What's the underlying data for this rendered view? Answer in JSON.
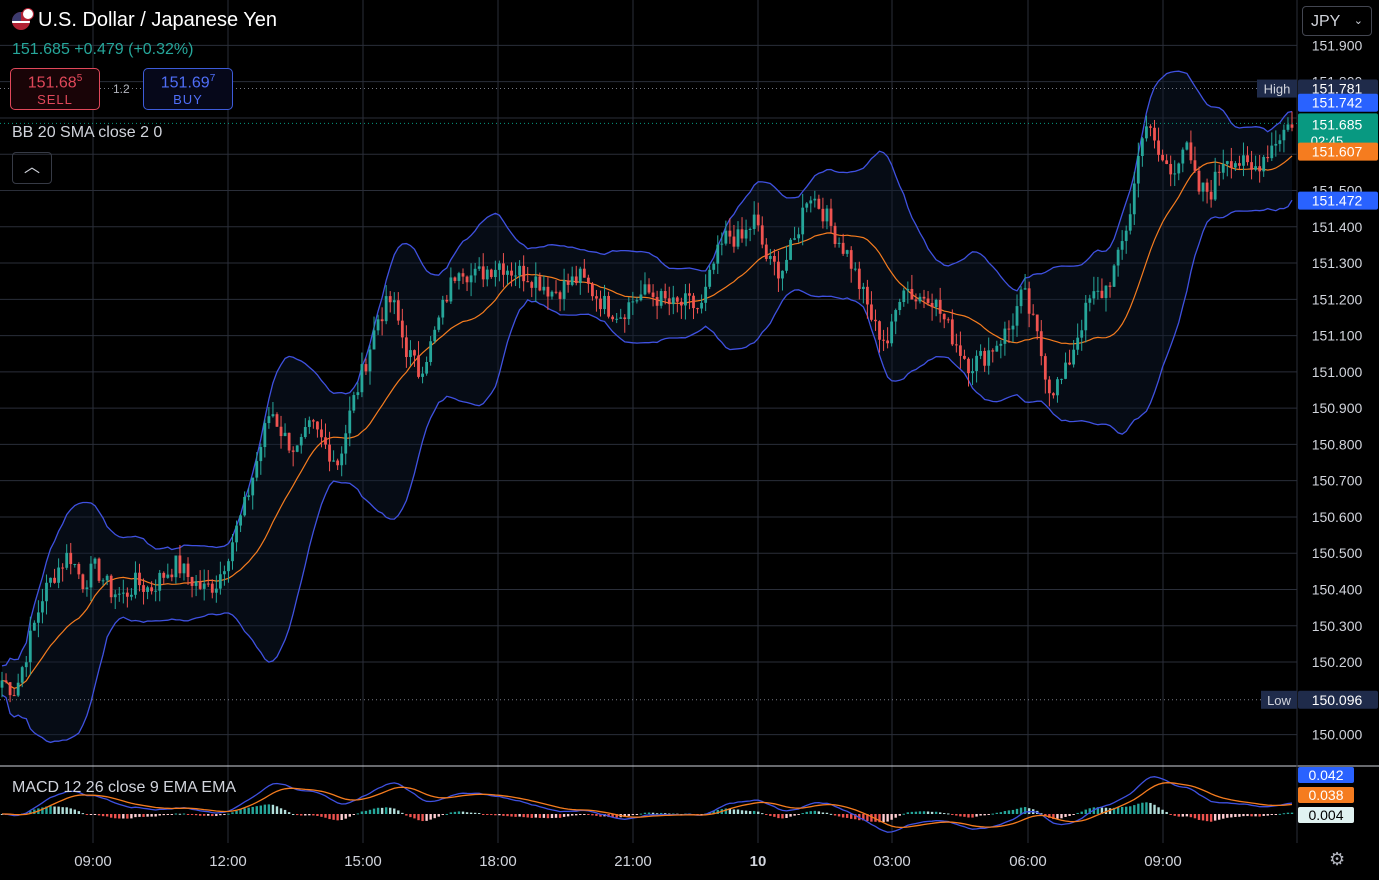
{
  "header": {
    "title": "U.S. Dollar / Japanese Yen",
    "price_change": "151.685 +0.479 (+0.32%)",
    "sell": {
      "price_main": "151.68",
      "price_sup": "5",
      "label": "SELL"
    },
    "buy": {
      "price_main": "151.69",
      "price_sup": "7",
      "label": "BUY"
    },
    "spread": "1.2",
    "collapse_icon": "chevron-up-icon",
    "currency": "JPY"
  },
  "indicators": {
    "bb_label": "BB 20 SMA close 2 0",
    "macd_label": "MACD 12 26 close 9 EMA EMA"
  },
  "colors": {
    "bg": "#000000",
    "grid": "#2a2e39",
    "up": "#26a69a",
    "down": "#ef5350",
    "bb_band": "#3f51e0",
    "bb_basis": "#f57c1f",
    "macd_line": "#3f51e0",
    "signal_line": "#f57c1f",
    "high_low_tag": "#1f2b4a",
    "price_tag": "#089981",
    "upper_tag": "#2962ff",
    "basis_tag": "#f57c1f"
  },
  "chart_data": {
    "type": "candlestick",
    "title": "U.S. Dollar / Japanese Yen",
    "y_ticks": [
      151.9,
      151.8,
      151.7,
      151.6,
      151.5,
      151.4,
      151.3,
      151.2,
      151.1,
      151.0,
      150.9,
      150.8,
      150.7,
      150.6,
      150.5,
      150.4,
      150.3,
      150.2,
      150.0
    ],
    "y_tick_labels": [
      "151.900",
      "151.800",
      "151.700",
      "151.600",
      "151.500",
      "151.400",
      "151.300",
      "151.200",
      "151.100",
      "151.000",
      "150.900",
      "150.800",
      "150.700",
      "150.600",
      "150.500",
      "150.400",
      "150.300",
      "150.200",
      "150.000"
    ],
    "ylim": [
      149.93,
      151.97
    ],
    "x_ticks": [
      "09:00",
      "12:00",
      "15:00",
      "18:00",
      "21:00",
      "10",
      "03:00",
      "06:00",
      "09:00"
    ],
    "last_price": {
      "value": "151.685",
      "countdown": "02:45"
    },
    "high": {
      "label": "High",
      "value": "151.781"
    },
    "low": {
      "label": "Low",
      "value": "150.096"
    },
    "bb_upper": "151.742",
    "bb_basis": "151.607",
    "bb_lower": "151.472",
    "close_path": [
      [
        0,
        150.15
      ],
      [
        3,
        150.12
      ],
      [
        6,
        150.25
      ],
      [
        9,
        150.38
      ],
      [
        12,
        150.45
      ],
      [
        15,
        150.5
      ],
      [
        18,
        150.42
      ],
      [
        21,
        150.46
      ],
      [
        24,
        150.4
      ],
      [
        27,
        150.38
      ],
      [
        30,
        150.42
      ],
      [
        33,
        150.4
      ],
      [
        36,
        150.44
      ],
      [
        39,
        150.47
      ],
      [
        42,
        150.43
      ],
      [
        45,
        150.4
      ],
      [
        48,
        150.42
      ],
      [
        51,
        150.52
      ],
      [
        54,
        150.62
      ],
      [
        57,
        150.76
      ],
      [
        60,
        150.9
      ],
      [
        63,
        150.82
      ],
      [
        66,
        150.78
      ],
      [
        69,
        150.85
      ],
      [
        72,
        150.8
      ],
      [
        75,
        150.75
      ],
      [
        78,
        150.9
      ],
      [
        81,
        151.02
      ],
      [
        84,
        151.15
      ],
      [
        87,
        151.2
      ],
      [
        90,
        151.07
      ],
      [
        93,
        151.0
      ],
      [
        96,
        151.08
      ],
      [
        99,
        151.2
      ],
      [
        102,
        151.3
      ],
      [
        105,
        151.26
      ],
      [
        108,
        151.28
      ],
      [
        111,
        151.3
      ],
      [
        114,
        151.28
      ],
      [
        117,
        151.27
      ],
      [
        120,
        151.25
      ],
      [
        123,
        151.22
      ],
      [
        126,
        151.24
      ],
      [
        129,
        151.26
      ],
      [
        132,
        151.22
      ],
      [
        135,
        151.18
      ],
      [
        138,
        151.16
      ],
      [
        141,
        151.2
      ],
      [
        144,
        151.22
      ],
      [
        147,
        151.2
      ],
      [
        150,
        151.18
      ],
      [
        153,
        151.19
      ],
      [
        156,
        151.17
      ],
      [
        159,
        151.3
      ],
      [
        162,
        151.38
      ],
      [
        165,
        151.36
      ],
      [
        168,
        151.42
      ],
      [
        171,
        151.3
      ],
      [
        174,
        151.28
      ],
      [
        177,
        151.36
      ],
      [
        180,
        151.5
      ],
      [
        183,
        151.45
      ],
      [
        186,
        151.38
      ],
      [
        189,
        151.32
      ],
      [
        192,
        151.22
      ],
      [
        195,
        151.12
      ],
      [
        198,
        151.08
      ],
      [
        201,
        151.25
      ],
      [
        204,
        151.2
      ],
      [
        207,
        151.22
      ],
      [
        210,
        151.15
      ],
      [
        213,
        151.08
      ],
      [
        216,
        151.02
      ],
      [
        219,
        151.04
      ],
      [
        222,
        151.08
      ],
      [
        225,
        151.12
      ],
      [
        228,
        151.22
      ],
      [
        231,
        151.1
      ],
      [
        234,
        150.95
      ],
      [
        237,
        150.98
      ],
      [
        240,
        151.1
      ],
      [
        243,
        151.2
      ],
      [
        246,
        151.22
      ],
      [
        249,
        151.3
      ],
      [
        252,
        151.45
      ],
      [
        255,
        151.7
      ],
      [
        258,
        151.6
      ],
      [
        261,
        151.55
      ],
      [
        264,
        151.63
      ],
      [
        267,
        151.5
      ],
      [
        270,
        151.5
      ],
      [
        273,
        151.6
      ],
      [
        276,
        151.58
      ],
      [
        279,
        151.55
      ],
      [
        282,
        151.6
      ],
      [
        285,
        151.65
      ],
      [
        288,
        151.69
      ]
    ],
    "macd": {
      "macd_value": "0.042",
      "signal_value": "0.038",
      "histogram_value": "0.004"
    }
  }
}
